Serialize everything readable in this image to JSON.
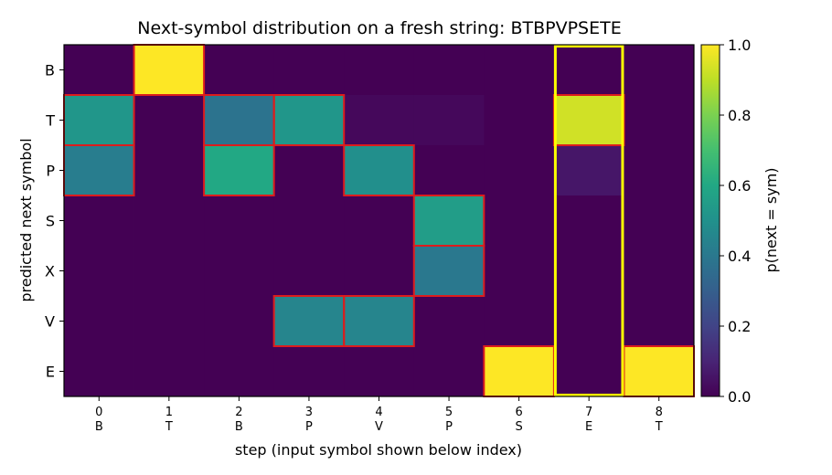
{
  "chart_data": {
    "type": "heatmap",
    "title": "Next-symbol distribution on a fresh string: BTBPVPSETE",
    "xlabel": "step (input symbol shown below index)",
    "ylabel": "predicted next symbol",
    "x_indices": [
      "0",
      "1",
      "2",
      "3",
      "4",
      "5",
      "6",
      "7",
      "8"
    ],
    "x_symbols": [
      "B",
      "T",
      "B",
      "P",
      "V",
      "P",
      "S",
      "E",
      "T"
    ],
    "y_categories": [
      "B",
      "T",
      "P",
      "S",
      "X",
      "V",
      "E"
    ],
    "values": [
      [
        0.0,
        1.0,
        0.0,
        0.0,
        0.0,
        0.0,
        0.0,
        0.0,
        0.0
      ],
      [
        0.52,
        0.0,
        0.38,
        0.52,
        0.02,
        0.02,
        0.0,
        0.93,
        0.0
      ],
      [
        0.42,
        0.0,
        0.6,
        0.0,
        0.49,
        0.0,
        0.0,
        0.06,
        0.0
      ],
      [
        0.0,
        0.0,
        0.0,
        0.0,
        0.0,
        0.55,
        0.0,
        0.0,
        0.0
      ],
      [
        0.0,
        0.0,
        0.0,
        0.0,
        0.0,
        0.4,
        0.0,
        0.0,
        0.0
      ],
      [
        0.0,
        0.0,
        0.0,
        0.45,
        0.45,
        0.0,
        0.0,
        0.0,
        0.0
      ],
      [
        0.0,
        0.0,
        0.0,
        0.0,
        0.0,
        0.0,
        1.0,
        0.0,
        1.0
      ]
    ],
    "outlined_cells": [
      [
        0,
        1
      ],
      [
        1,
        0
      ],
      [
        1,
        2
      ],
      [
        1,
        3
      ],
      [
        1,
        7
      ],
      [
        2,
        0
      ],
      [
        2,
        2
      ],
      [
        2,
        4
      ],
      [
        3,
        5
      ],
      [
        4,
        5
      ],
      [
        5,
        3
      ],
      [
        5,
        4
      ],
      [
        6,
        6
      ],
      [
        6,
        8
      ]
    ],
    "outline_color": "#dd1c1c",
    "highlighted_column": 7,
    "highlight_color": "#ffff00",
    "colorbar": {
      "label": "p(next = sym)",
      "range": [
        0.0,
        1.0
      ],
      "ticks": [
        "0.0",
        "0.2",
        "0.4",
        "0.6",
        "0.8",
        "1.0"
      ],
      "colormap": "viridis"
    }
  }
}
